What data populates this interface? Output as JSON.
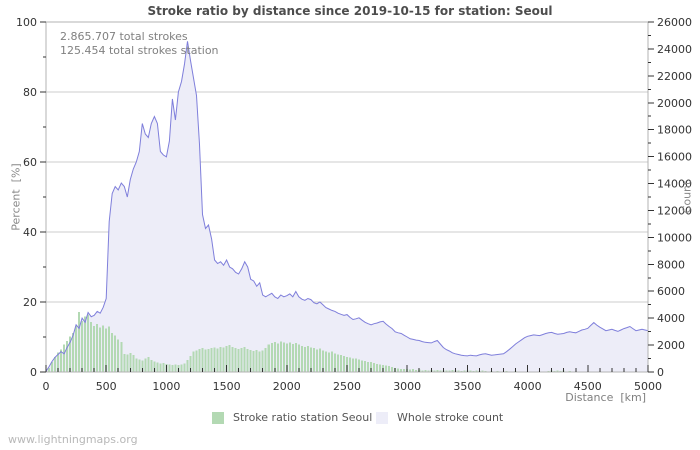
{
  "page": {
    "title": "Stroke ratio by distance since 2019-10-15 for station: Seoul",
    "watermark": "www.lightningmaps.org"
  },
  "colors": {
    "background": "#ffffff",
    "frame": "#b3b3b3",
    "grid": "#cccccc",
    "tick": "#333333",
    "tick_label": "#333333",
    "bar_green": "#b3d9b3",
    "area_fill": "#ededf8",
    "line_blue": "#7f7fdb"
  },
  "chart_data": {
    "type": "area+bar",
    "title": "Stroke ratio by distance since 2019-10-15 for station: Seoul",
    "annotations": [
      "2.865.707 total strokes",
      "125.454 total strokes station"
    ],
    "x_axis": {
      "label": "Distance  [km]",
      "min": 0,
      "max": 5000,
      "major_tick_step": 500,
      "minor_tick_step": 100
    },
    "y_left_axis": {
      "label": "Percent  [%]",
      "min": 0,
      "max": 100,
      "major_tick_step": 20,
      "minor_tick_step": 10,
      "gridlines": true
    },
    "y_right_axis": {
      "label": "Count",
      "min": 0,
      "max": 26000,
      "major_tick_step": 2000,
      "minor_tick_step": 1000
    },
    "x_start_km": 0,
    "x_step_km": 25,
    "series": [
      {
        "name": "Stroke ratio station Seoul",
        "type": "bar",
        "axis": "left",
        "unit": "percent",
        "color": "#b3d9b3",
        "values": [
          0.3,
          1.2,
          2.9,
          4.3,
          5.6,
          6.5,
          7.8,
          8.8,
          10.2,
          11.2,
          13.1,
          17.2,
          14.6,
          15.9,
          16.4,
          14.3,
          13.1,
          13.7,
          12.7,
          13.3,
          12.4,
          13.0,
          11.2,
          10.4,
          9.3,
          8.6,
          5.2,
          5.0,
          5.4,
          4.9,
          3.9,
          3.6,
          3.3,
          3.8,
          4.3,
          3.4,
          3.0,
          2.7,
          2.5,
          2.6,
          2.3,
          2.1,
          2.0,
          2.1,
          2.0,
          2.2,
          2.4,
          3.4,
          4.6,
          5.8,
          6.2,
          6.6,
          6.8,
          6.4,
          6.6,
          6.9,
          7.0,
          6.7,
          7.2,
          7.0,
          7.4,
          7.7,
          7.2,
          6.9,
          6.6,
          6.9,
          7.1,
          6.6,
          6.3,
          6.0,
          6.3,
          5.9,
          6.2,
          6.8,
          7.9,
          8.3,
          8.6,
          8.2,
          8.7,
          8.4,
          8.1,
          8.4,
          8.0,
          8.3,
          7.8,
          7.5,
          7.2,
          7.4,
          7.0,
          6.8,
          6.5,
          6.7,
          6.2,
          5.9,
          5.6,
          5.8,
          5.3,
          5.0,
          4.9,
          4.6,
          4.3,
          4.1,
          3.8,
          3.9,
          3.6,
          3.3,
          3.1,
          2.9,
          2.8,
          2.6,
          2.3,
          2.2,
          2.0,
          1.8,
          1.7,
          1.4,
          1.2,
          1.0,
          0.9,
          0.8,
          0.8,
          0.7,
          0.8,
          0.6,
          0.7,
          0.5,
          0.6,
          0.5,
          0.6,
          0.5,
          0.6,
          0.4,
          0.5,
          0.4,
          0.5,
          0.6,
          0.4,
          0.5,
          0.3,
          0.4,
          0.5,
          0.4,
          0.3,
          0.4,
          0.3,
          0.4,
          0.3,
          0.2,
          0.3,
          0.2,
          0.3,
          0.2,
          0.2,
          0.3,
          0.2,
          0.2,
          0.3,
          0.2,
          0.2,
          0.1,
          0.2,
          0.2,
          0.1,
          0.2,
          0.1,
          0.2,
          0.2,
          0.3,
          0.4,
          0.3,
          0.4,
          0.3,
          0.4,
          0.2,
          0.3,
          0.1,
          0.2,
          0.1,
          0.1,
          0.2,
          0.1,
          0.1,
          0.2,
          0.1,
          0.1,
          0.1,
          0.2,
          0.1,
          0.1,
          0.1,
          0.1,
          0.1,
          0.1,
          0.1,
          0.1,
          0.1,
          0.1,
          0.1,
          0.1,
          0.1,
          0.1
        ]
      },
      {
        "name": "Whole stroke count",
        "type": "area",
        "axis": "right",
        "unit": "count",
        "fill": "#ededf8",
        "line_color": "#7f7fdb",
        "values": [
          52,
          390,
          780,
          1092,
          1300,
          1508,
          1352,
          1820,
          2210,
          2730,
          3510,
          3250,
          4004,
          3692,
          4420,
          4108,
          4212,
          4498,
          4368,
          4810,
          5460,
          11180,
          13260,
          13780,
          13520,
          14040,
          13780,
          13000,
          14300,
          15080,
          15600,
          16380,
          18460,
          17680,
          17420,
          18460,
          18980,
          18460,
          16380,
          16120,
          15990,
          17160,
          20280,
          18720,
          20800,
          21580,
          22880,
          24570,
          23140,
          21840,
          20540,
          16900,
          11700,
          10660,
          10920,
          9880,
          8320,
          8060,
          8190,
          7930,
          8320,
          7800,
          7670,
          7410,
          7280,
          7670,
          8190,
          7800,
          6890,
          6760,
          6370,
          6630,
          5720,
          5590,
          5720,
          5850,
          5590,
          5460,
          5720,
          5590,
          5668,
          5798,
          5590,
          5980,
          5590,
          5408,
          5330,
          5460,
          5382,
          5148,
          5070,
          5200,
          4992,
          4784,
          4680,
          4576,
          4498,
          4368,
          4290,
          4212,
          4264,
          4056,
          3900,
          3952,
          4030,
          3848,
          3692,
          3588,
          3510,
          3588,
          3640,
          3718,
          3770,
          3562,
          3380,
          3224,
          2990,
          2912,
          2860,
          2730,
          2600,
          2470,
          2418,
          2366,
          2340,
          2262,
          2210,
          2184,
          2158,
          2262,
          2340,
          2080,
          1820,
          1664,
          1560,
          1430,
          1352,
          1300,
          1248,
          1222,
          1196,
          1248,
          1222,
          1196,
          1274,
          1326,
          1352,
          1300,
          1248,
          1274,
          1300,
          1326,
          1352,
          1508,
          1690,
          1872,
          2080,
          2236,
          2392,
          2548,
          2652,
          2704,
          2756,
          2730,
          2704,
          2782,
          2860,
          2912,
          2938,
          2860,
          2808,
          2834,
          2860,
          2938,
          2990,
          2938,
          2912,
          3016,
          3120,
          3172,
          3250,
          3458,
          3666,
          3484,
          3328,
          3198,
          3068,
          3120,
          3172,
          3094,
          3016,
          3120,
          3224,
          3302,
          3380,
          3224,
          3068,
          3120,
          3172,
          3120,
          3068
        ]
      }
    ],
    "legend": {
      "position": "bottom",
      "items": [
        {
          "label": "Stroke ratio station Seoul",
          "swatch": "#b3d9b3"
        },
        {
          "label": "Whole stroke count",
          "swatch": "#ededf8"
        }
      ]
    }
  }
}
